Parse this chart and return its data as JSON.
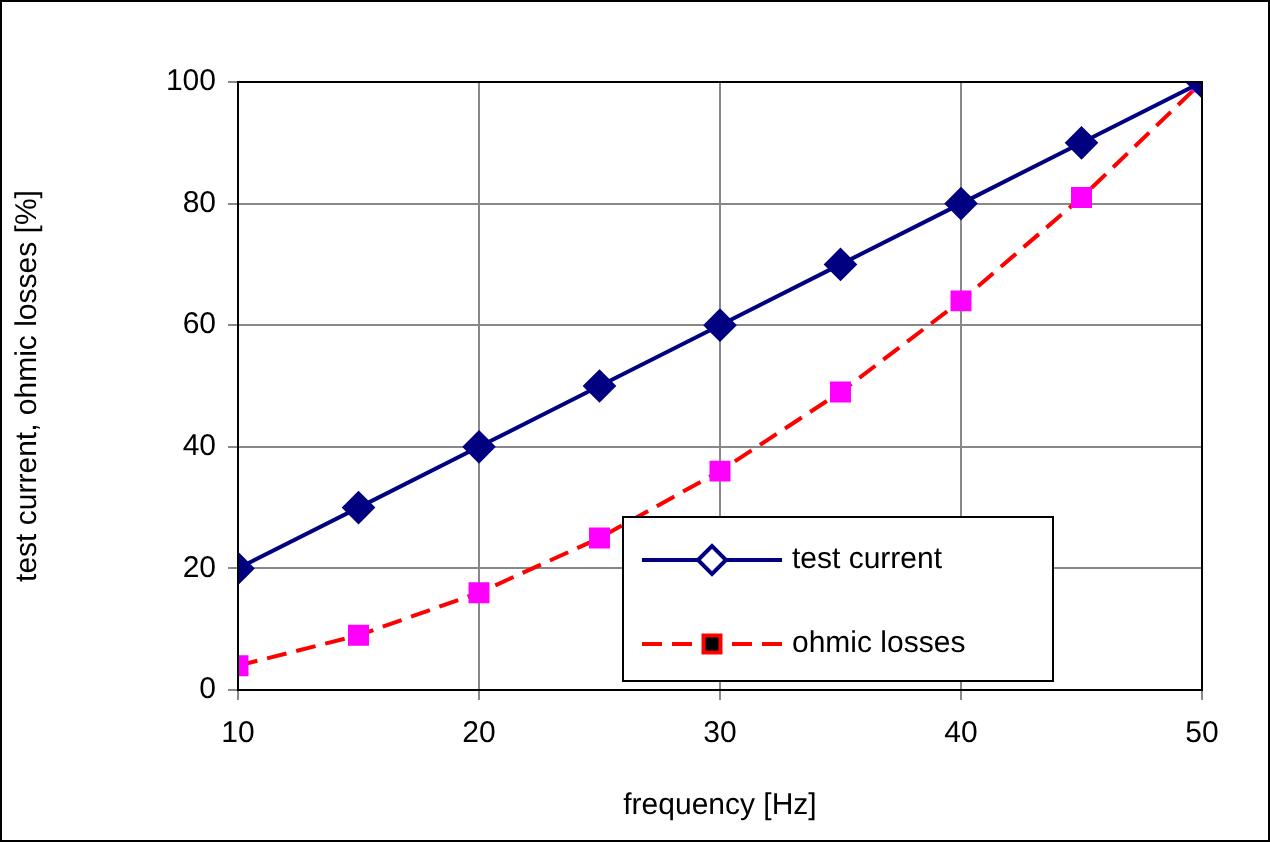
{
  "chart_data": {
    "type": "line",
    "xlabel": "frequency [Hz]",
    "ylabel": "test current, ohmic losses [%]",
    "x": [
      10,
      15,
      20,
      25,
      30,
      35,
      40,
      45,
      50
    ],
    "series": [
      {
        "name": "test current",
        "color": "#000080",
        "marker": "diamond",
        "line_style": "solid",
        "values": [
          20,
          30,
          40,
          50,
          60,
          70,
          80,
          90,
          100
        ]
      },
      {
        "name": "ohmic losses",
        "color": "#ff00ff",
        "marker": "square",
        "line_style": "dashed",
        "values": [
          4,
          9,
          16,
          25,
          36,
          49,
          64,
          81,
          100
        ]
      }
    ],
    "xlim": [
      10,
      50
    ],
    "xticks": [
      10,
      20,
      30,
      40,
      50
    ],
    "ylim": [
      0,
      100
    ],
    "yticks": [
      0,
      20,
      40,
      60,
      80,
      100
    ],
    "grid": true,
    "legend": "bottom right"
  }
}
